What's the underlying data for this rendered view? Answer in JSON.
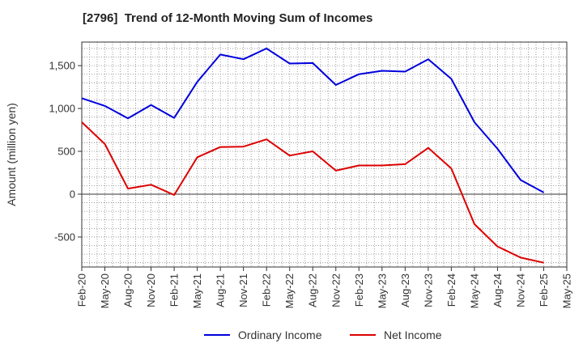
{
  "chart_data": {
    "type": "line",
    "title": "[2796]  Trend of 12-Month Moving Sum of Incomes",
    "xlabel": "",
    "ylabel": "Amount (million yen)",
    "ylim": [
      -850,
      1775
    ],
    "yticks": [
      -500,
      0,
      500,
      1000,
      1500
    ],
    "ytick_labels": [
      "-500",
      "0",
      "500",
      "1,000",
      "1,500"
    ],
    "categories": [
      "Feb-20",
      "May-20",
      "Aug-20",
      "Nov-20",
      "Feb-21",
      "May-21",
      "Aug-21",
      "Nov-21",
      "Feb-22",
      "May-22",
      "Aug-22",
      "Nov-22",
      "Feb-23",
      "May-23",
      "Aug-23",
      "Nov-23",
      "Feb-24",
      "May-24",
      "Aug-24",
      "Nov-24",
      "Feb-25",
      "May-25"
    ],
    "grid": true,
    "legend_position": "bottom",
    "series": [
      {
        "name": "Ordinary Income",
        "color": "#0000dd",
        "values": [
          1120,
          1030,
          885,
          1040,
          890,
          1310,
          1630,
          1575,
          1700,
          1525,
          1530,
          1275,
          1400,
          1440,
          1430,
          1575,
          1345,
          840,
          530,
          165,
          20,
          null
        ]
      },
      {
        "name": "Net Income",
        "color": "#dd0000",
        "values": [
          840,
          585,
          65,
          110,
          -10,
          430,
          550,
          555,
          640,
          450,
          500,
          275,
          335,
          335,
          350,
          540,
          300,
          -350,
          -610,
          -740,
          -800,
          null
        ]
      }
    ]
  }
}
